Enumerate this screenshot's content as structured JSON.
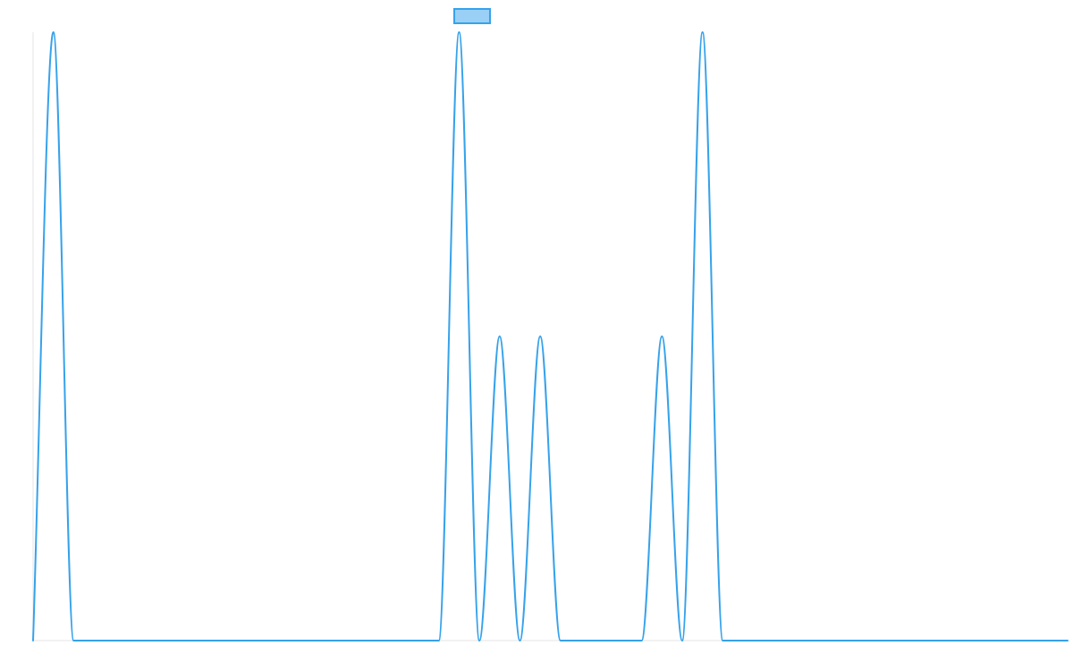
{
  "chart_data": {
    "type": "line",
    "title": "",
    "xlabel": "",
    "ylabel": "",
    "legend_position": "top",
    "grid": false,
    "xlim": [
      0,
      51
    ],
    "ylim": [
      0,
      1
    ],
    "x": [
      0,
      1,
      2,
      3,
      4,
      5,
      6,
      7,
      8,
      9,
      10,
      11,
      12,
      13,
      14,
      15,
      16,
      17,
      18,
      19,
      20,
      21,
      22,
      23,
      24,
      25,
      26,
      27,
      28,
      29,
      30,
      31,
      32,
      33,
      34,
      35,
      36,
      37,
      38,
      39,
      40,
      41,
      42,
      43,
      44,
      45,
      46,
      47,
      48,
      49,
      50,
      51
    ],
    "series": [
      {
        "values": [
          0,
          1,
          0,
          0,
          0,
          0,
          0,
          0,
          0,
          0,
          0,
          0,
          0,
          0,
          0,
          0,
          0,
          0,
          0,
          0,
          0,
          1,
          0,
          0.5,
          0,
          0.5,
          0,
          0,
          0,
          0,
          0,
          0.5,
          0,
          1,
          0,
          0,
          0,
          0,
          0,
          0,
          0,
          0,
          0,
          0,
          0,
          0,
          0,
          0,
          0,
          0,
          0,
          0
        ],
        "color": "#36a2eb",
        "fill": "#9ad0f5"
      }
    ]
  }
}
